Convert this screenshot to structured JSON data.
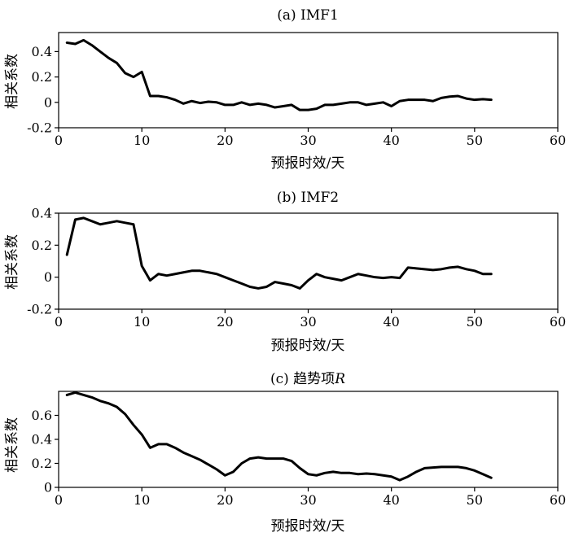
{
  "chart_data": [
    {
      "type": "line",
      "title": "(a) IMF1",
      "xlabel": "预报时效/天",
      "ylabel": "相关系数",
      "xlim": [
        0,
        60
      ],
      "ylim": [
        -0.2,
        0.55
      ],
      "xticks": [
        0,
        10,
        20,
        30,
        40,
        50,
        60
      ],
      "yticks": [
        -0.2,
        0,
        0.2,
        0.4
      ],
      "x": [
        1,
        2,
        3,
        4,
        5,
        6,
        7,
        8,
        9,
        10,
        11,
        12,
        13,
        14,
        15,
        16,
        17,
        18,
        19,
        20,
        21,
        22,
        23,
        24,
        25,
        26,
        27,
        28,
        29,
        30,
        31,
        32,
        33,
        34,
        35,
        36,
        37,
        38,
        39,
        40,
        41,
        42,
        43,
        44,
        45,
        46,
        47,
        48,
        49,
        50,
        51,
        52
      ],
      "series": [
        {
          "values": [
            0.47,
            0.46,
            0.49,
            0.45,
            0.4,
            0.35,
            0.31,
            0.23,
            0.2,
            0.24,
            0.05,
            0.05,
            0.04,
            0.02,
            -0.01,
            0.01,
            -0.005,
            0.005,
            0.0,
            -0.02,
            -0.02,
            0.0,
            -0.02,
            -0.01,
            -0.02,
            -0.04,
            -0.03,
            -0.02,
            -0.06,
            -0.06,
            -0.05,
            -0.02,
            -0.02,
            -0.01,
            0.0,
            0.0,
            -0.02,
            -0.01,
            0.0,
            -0.03,
            0.01,
            0.02,
            0.02,
            0.02,
            0.01,
            0.035,
            0.045,
            0.05,
            0.03,
            0.02,
            0.025,
            0.02
          ]
        }
      ]
    },
    {
      "type": "line",
      "title": "(b) IMF2",
      "xlabel": "预报时效/天",
      "ylabel": "相关系数",
      "xlim": [
        0,
        60
      ],
      "ylim": [
        -0.2,
        0.4
      ],
      "xticks": [
        0,
        10,
        20,
        30,
        40,
        50,
        60
      ],
      "yticks": [
        -0.2,
        0,
        0.2,
        0.4
      ],
      "x": [
        1,
        2,
        3,
        4,
        5,
        6,
        7,
        8,
        9,
        10,
        11,
        12,
        13,
        14,
        15,
        16,
        17,
        18,
        19,
        20,
        21,
        22,
        23,
        24,
        25,
        26,
        27,
        28,
        29,
        30,
        31,
        32,
        33,
        34,
        35,
        36,
        37,
        38,
        39,
        40,
        41,
        42,
        43,
        44,
        45,
        46,
        47,
        48,
        49,
        50,
        51,
        52
      ],
      "series": [
        {
          "values": [
            0.14,
            0.36,
            0.37,
            0.35,
            0.33,
            0.34,
            0.35,
            0.34,
            0.33,
            0.07,
            -0.02,
            0.02,
            0.01,
            0.02,
            0.03,
            0.04,
            0.04,
            0.03,
            0.02,
            0.0,
            -0.02,
            -0.04,
            -0.06,
            -0.07,
            -0.06,
            -0.03,
            -0.04,
            -0.05,
            -0.07,
            -0.02,
            0.02,
            0.0,
            -0.01,
            -0.02,
            0.0,
            0.02,
            0.01,
            0.0,
            -0.005,
            0.0,
            -0.005,
            0.06,
            0.055,
            0.05,
            0.045,
            0.05,
            0.06,
            0.065,
            0.05,
            0.04,
            0.02,
            0.02
          ]
        }
      ]
    },
    {
      "type": "line",
      "title": "(c) 趋势项R",
      "xlabel": "预报时效/天",
      "ylabel": "相关系数",
      "xlim": [
        0,
        60
      ],
      "ylim": [
        0,
        0.8
      ],
      "xticks": [
        0,
        10,
        20,
        30,
        40,
        50,
        60
      ],
      "yticks": [
        0,
        0.2,
        0.4,
        0.6
      ],
      "x": [
        1,
        2,
        3,
        4,
        5,
        6,
        7,
        8,
        9,
        10,
        11,
        12,
        13,
        14,
        15,
        16,
        17,
        18,
        19,
        20,
        21,
        22,
        23,
        24,
        25,
        26,
        27,
        28,
        29,
        30,
        31,
        32,
        33,
        34,
        35,
        36,
        37,
        38,
        39,
        40,
        41,
        42,
        43,
        44,
        45,
        46,
        47,
        48,
        49,
        50,
        51,
        52
      ],
      "series": [
        {
          "values": [
            0.77,
            0.79,
            0.77,
            0.75,
            0.72,
            0.7,
            0.67,
            0.61,
            0.52,
            0.44,
            0.33,
            0.36,
            0.36,
            0.33,
            0.29,
            0.26,
            0.23,
            0.19,
            0.15,
            0.1,
            0.13,
            0.2,
            0.24,
            0.25,
            0.24,
            0.24,
            0.24,
            0.22,
            0.16,
            0.11,
            0.1,
            0.12,
            0.13,
            0.12,
            0.12,
            0.11,
            0.115,
            0.11,
            0.1,
            0.09,
            0.06,
            0.09,
            0.13,
            0.16,
            0.165,
            0.17,
            0.17,
            0.17,
            0.16,
            0.14,
            0.11,
            0.08
          ]
        }
      ]
    }
  ]
}
